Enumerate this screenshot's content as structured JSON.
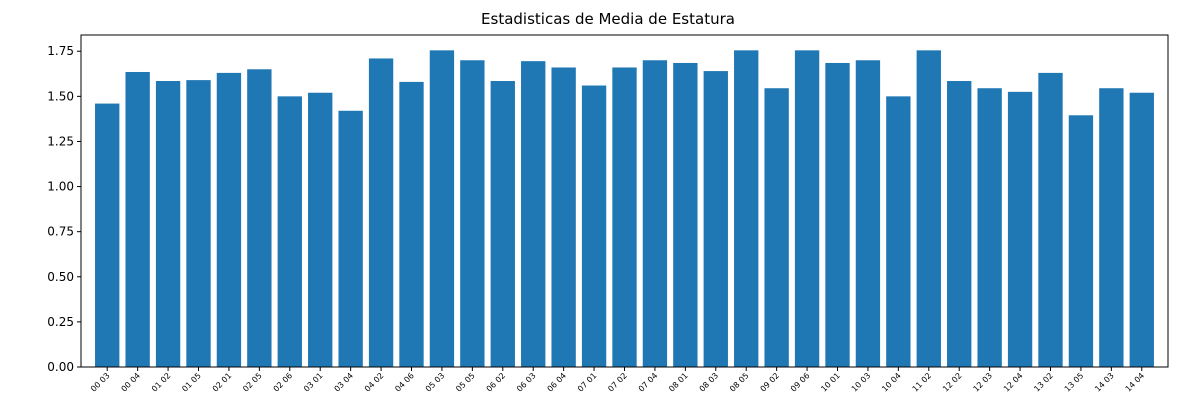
{
  "chart_data": {
    "type": "bar",
    "title": "Estadisticas de Media de Estatura",
    "xlabel": "",
    "ylabel": "",
    "categories": [
      "00 03",
      "00 04",
      "01 02",
      "01 05",
      "02 01",
      "02 05",
      "02 06",
      "03 01",
      "03 04",
      "04 02",
      "04 06",
      "05 03",
      "05 05",
      "06 02",
      "06 03",
      "06 04",
      "07 01",
      "07 02",
      "07 04",
      "08 01",
      "08 03",
      "08 05",
      "09 02",
      "09 06",
      "10 01",
      "10 03",
      "10 04",
      "11 02",
      "12 02",
      "12 03",
      "12 04",
      "13 02",
      "13 05",
      "14 03",
      "14 04"
    ],
    "values": [
      1.46,
      1.635,
      1.585,
      1.59,
      1.63,
      1.65,
      1.5,
      1.52,
      1.42,
      1.71,
      1.58,
      1.755,
      1.7,
      1.585,
      1.695,
      1.66,
      1.56,
      1.66,
      1.7,
      1.685,
      1.64,
      1.755,
      1.545,
      1.755,
      1.685,
      1.7,
      1.5,
      1.755,
      1.585,
      1.545,
      1.525,
      1.63,
      1.395,
      1.545,
      1.52
    ],
    "ylim": [
      0,
      1.84
    ],
    "yticks": [
      "0.00",
      "0.25",
      "0.50",
      "0.75",
      "1.00",
      "1.25",
      "1.50",
      "1.75"
    ],
    "grid": false,
    "legend": "none",
    "bar_color": "#1f77b4"
  }
}
